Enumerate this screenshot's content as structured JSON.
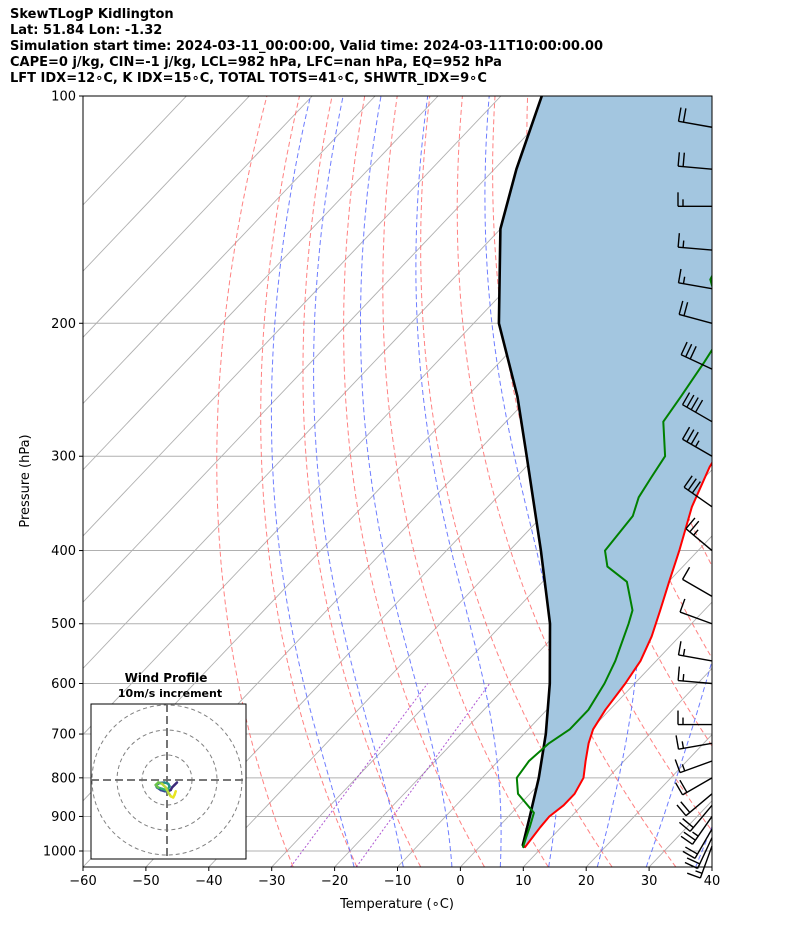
{
  "header": {
    "title": "SkewTLogP Kidlington",
    "location": "Lat: 51.84   Lon: -1.32",
    "times": "Simulation start time: 2024-03-11_00:00:00, Valid time: 2024-03-11T10:00:00.00",
    "indices1": "CAPE=0 j/kg, CIN=-1 j/kg, LCL=982 hPa, LFC=nan hPa, EQ=952 hPa",
    "indices2": "LFT IDX=12∘C, K IDX=15∘C, TOTAL TOTS=41∘C, SHWTR_IDX=9∘C"
  },
  "colors": {
    "temperature": "#ff0000",
    "dewpoint": "#008000",
    "parcel": "#000000",
    "cape_fill": "#a3c6e0",
    "isotherm": "#b0b0b0",
    "dry_adiabat": "#ff6b6b",
    "moist_adiabat": "#5566ff",
    "mixing_ratio": "#9b30c8",
    "hodo_ring": "#808080"
  },
  "chart_data": {
    "type": "line",
    "subtype": "skew-t log-p",
    "xlabel": "Temperature (∘C)",
    "ylabel": "Pressure (hPa)",
    "xlim": [
      -60,
      40
    ],
    "ylim": [
      1050,
      100
    ],
    "y_scale": "log",
    "grid": true,
    "x_ticks": [
      -60,
      -50,
      -40,
      -30,
      -20,
      -10,
      0,
      10,
      20,
      30,
      40
    ],
    "x_tick_labels": [
      "−60",
      "−50",
      "−40",
      "−30",
      "−20",
      "−10",
      "0",
      "10",
      "20",
      "30",
      "40"
    ],
    "y_ticks": [
      1000,
      900,
      800,
      700,
      600,
      500,
      400,
      300,
      200,
      100
    ],
    "series": [
      {
        "key": "temperature",
        "pressure": [
          990,
          960,
          930,
          900,
          870,
          840,
          800,
          760,
          720,
          690,
          650,
          600,
          560,
          520,
          480,
          440,
          400,
          350,
          310,
          285,
          250,
          225,
          210,
          195,
          180,
          160,
          140,
          125,
          115,
          100
        ],
        "values": [
          7.3,
          7.0,
          6.7,
          6.5,
          7.1,
          7.1,
          6.1,
          3.9,
          1.7,
          0.3,
          -0.7,
          -1.5,
          -2.5,
          -4.4,
          -7.0,
          -9.9,
          -13.0,
          -17.6,
          -20.8,
          -22.3,
          -24.0,
          -23.8,
          -22.8,
          -19.8,
          -14.0,
          -7.0,
          0.5,
          4.5,
          6.5,
          12.0
        ]
      },
      {
        "key": "dewpoint",
        "pressure": [
          990,
          960,
          930,
          890,
          860,
          840,
          800,
          760,
          720,
          690,
          650,
          600,
          560,
          500,
          480,
          440,
          420,
          400,
          360,
          340,
          320,
          300,
          270,
          250,
          225,
          205,
          195,
          175,
          160,
          130,
          100
        ],
        "values": [
          7.0,
          6.0,
          5.0,
          3.5,
          0.3,
          -1.9,
          -4.5,
          -5.1,
          -4.6,
          -3.4,
          -3.4,
          -4.8,
          -6.5,
          -10.0,
          -11.4,
          -16.6,
          -22.0,
          -24.8,
          -25.6,
          -27.5,
          -28.5,
          -29.5,
          -35.0,
          -36.0,
          -37.5,
          -39.0,
          -42.0,
          -49.0,
          -51.0,
          -48.5,
          -44.0
        ]
      },
      {
        "key": "parcel",
        "pressure": [
          990,
          982,
          900,
          800,
          700,
          600,
          500,
          400,
          300,
          250,
          200,
          150,
          125,
          100
        ],
        "values": [
          7.3,
          6.6,
          3.4,
          -1.0,
          -6.5,
          -13.5,
          -22.5,
          -35.0,
          -51.5,
          -62.0,
          -76.0,
          -90.0,
          -96.5,
          -103.5
        ]
      }
    ],
    "wind_barbs": [
      {
        "pressure": 985,
        "speed_kt": 15,
        "direction_deg": 200
      },
      {
        "pressure": 960,
        "speed_kt": 20,
        "direction_deg": 205
      },
      {
        "pressure": 935,
        "speed_kt": 20,
        "direction_deg": 210
      },
      {
        "pressure": 900,
        "speed_kt": 25,
        "direction_deg": 215
      },
      {
        "pressure": 870,
        "speed_kt": 20,
        "direction_deg": 220
      },
      {
        "pressure": 840,
        "speed_kt": 20,
        "direction_deg": 230
      },
      {
        "pressure": 800,
        "speed_kt": 20,
        "direction_deg": 240
      },
      {
        "pressure": 760,
        "speed_kt": 15,
        "direction_deg": 250
      },
      {
        "pressure": 720,
        "speed_kt": 15,
        "direction_deg": 260
      },
      {
        "pressure": 680,
        "speed_kt": 15,
        "direction_deg": 270
      },
      {
        "pressure": 600,
        "speed_kt": 15,
        "direction_deg": 275
      },
      {
        "pressure": 560,
        "speed_kt": 15,
        "direction_deg": 280
      },
      {
        "pressure": 500,
        "speed_kt": 10,
        "direction_deg": 290
      },
      {
        "pressure": 460,
        "speed_kt": 10,
        "direction_deg": 300
      },
      {
        "pressure": 400,
        "speed_kt": 25,
        "direction_deg": 310
      },
      {
        "pressure": 350,
        "speed_kt": 30,
        "direction_deg": 305
      },
      {
        "pressure": 300,
        "speed_kt": 35,
        "direction_deg": 300
      },
      {
        "pressure": 270,
        "speed_kt": 40,
        "direction_deg": 300
      },
      {
        "pressure": 230,
        "speed_kt": 30,
        "direction_deg": 295
      },
      {
        "pressure": 200,
        "speed_kt": 20,
        "direction_deg": 285
      },
      {
        "pressure": 180,
        "speed_kt": 15,
        "direction_deg": 280
      },
      {
        "pressure": 160,
        "speed_kt": 15,
        "direction_deg": 275
      },
      {
        "pressure": 140,
        "speed_kt": 15,
        "direction_deg": 270
      },
      {
        "pressure": 125,
        "speed_kt": 20,
        "direction_deg": 275
      },
      {
        "pressure": 110,
        "speed_kt": 20,
        "direction_deg": 280
      }
    ],
    "hodograph": {
      "title": "Wind Profile",
      "subtitle": "10m/s increment",
      "ring_increment_ms": 10,
      "rings": 3,
      "u": [
        4,
        3,
        2,
        1.5,
        0.5,
        -0.8,
        -2.5,
        -4,
        -4.5,
        -3,
        -1,
        0.5,
        1,
        0.5,
        -0.5,
        -2,
        -3.5,
        -4.5,
        -3.5,
        -2,
        -0.5,
        0.5,
        1.5,
        2.5,
        3,
        3.5
      ],
      "v": [
        -1,
        -2,
        -3,
        -4,
        -4.5,
        -4.5,
        -4,
        -3,
        -2,
        -1.2,
        -1,
        -1.5,
        -2.5,
        -3.5,
        -4,
        -3.5,
        -3,
        -2,
        -1,
        -1.5,
        -3,
        -5,
        -6.5,
        -7,
        -6,
        -4.5
      ]
    }
  }
}
